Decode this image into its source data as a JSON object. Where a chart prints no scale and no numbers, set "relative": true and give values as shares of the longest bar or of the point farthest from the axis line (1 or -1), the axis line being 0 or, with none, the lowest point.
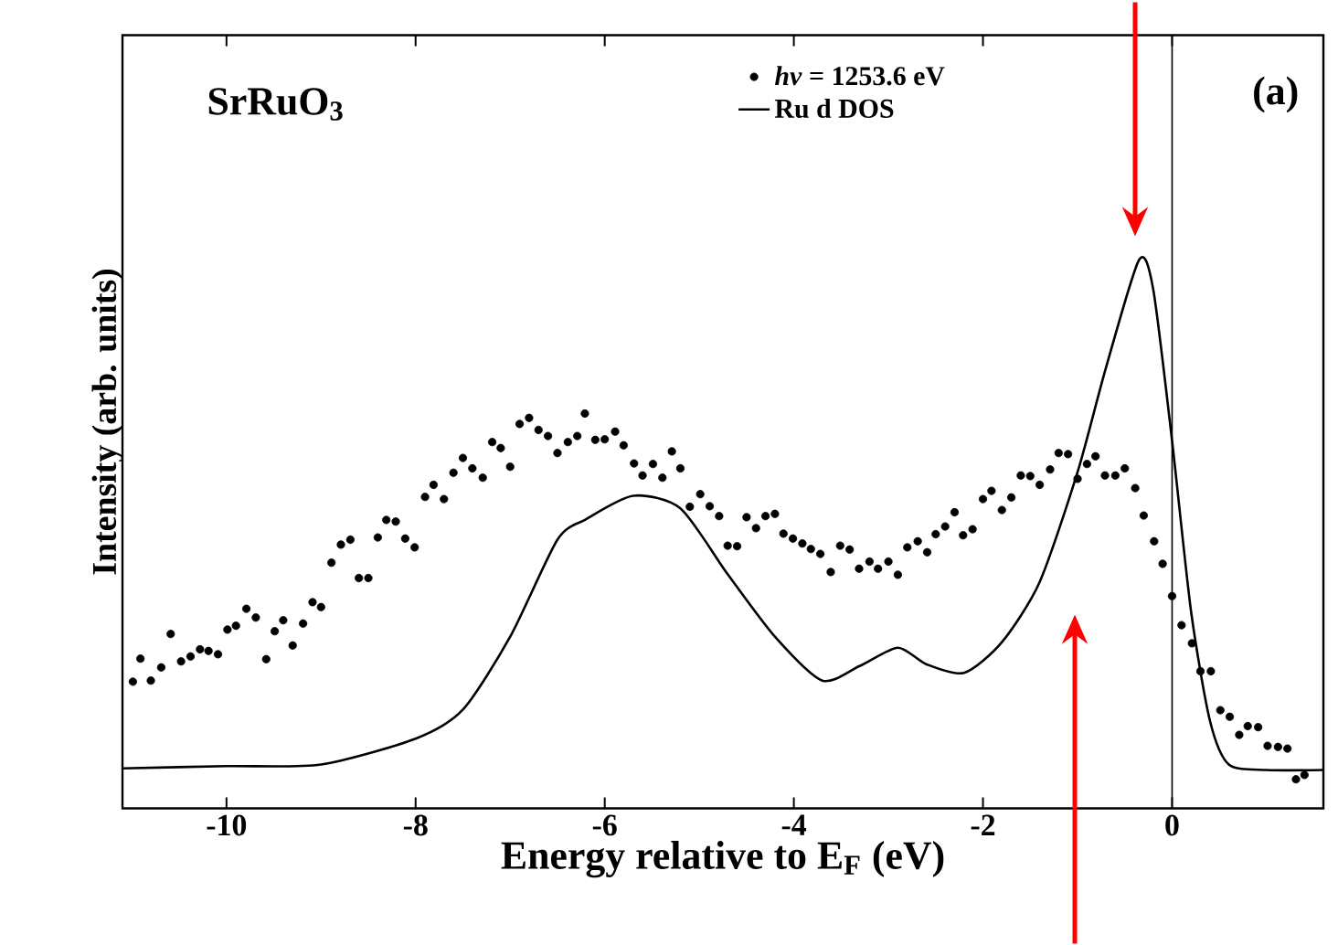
{
  "chart_data": {
    "type": "line",
    "title": "SrRuO$_{3}$",
    "xlabel": "Energy relative to E$_{F}$ (eV)",
    "ylabel": "Intensity (arb. units)",
    "annotations": [
      "(a)"
    ],
    "relative": true,
    "xlim": [
      -11.1,
      1.6
    ],
    "xticks": [
      -10,
      -8,
      -6,
      -4,
      -2,
      0
    ],
    "legend": "top right",
    "ref_lines": [
      {
        "axis": "x",
        "value": 0,
        "color": "#000000"
      }
    ],
    "series": [
      {
        "name": "*hν* = 1253.6 eV",
        "type": "scatter",
        "marker": "circle",
        "color": "#000000",
        "x": [
          -10.99,
          -10.91,
          -10.8,
          -10.69,
          -10.59,
          -10.48,
          -10.38,
          -10.28,
          -10.19,
          -10.09,
          -9.99,
          -9.9,
          -9.79,
          -9.69,
          -9.58,
          -9.49,
          -9.4,
          -9.3,
          -9.19,
          -9.09,
          -9.0,
          -8.89,
          -8.79,
          -8.69,
          -8.6,
          -8.5,
          -8.4,
          -8.31,
          -8.21,
          -8.11,
          -8.01,
          -7.9,
          -7.81,
          -7.7,
          -7.6,
          -7.5,
          -7.4,
          -7.29,
          -7.19,
          -7.1,
          -7.0,
          -6.9,
          -6.8,
          -6.7,
          -6.6,
          -6.5,
          -6.39,
          -6.29,
          -6.21,
          -6.1,
          -6.0,
          -5.89,
          -5.8,
          -5.69,
          -5.6,
          -5.49,
          -5.39,
          -5.29,
          -5.2,
          -5.1,
          -4.99,
          -4.89,
          -4.79,
          -4.7,
          -4.6,
          -4.5,
          -4.4,
          -4.3,
          -4.2,
          -4.11,
          -4.01,
          -3.91,
          -3.82,
          -3.72,
          -3.61,
          -3.51,
          -3.41,
          -3.31,
          -3.2,
          -3.11,
          -3.0,
          -2.9,
          -2.8,
          -2.69,
          -2.59,
          -2.5,
          -2.4,
          -2.3,
          -2.21,
          -2.11,
          -2.0,
          -1.91,
          -1.8,
          -1.7,
          -1.6,
          -1.5,
          -1.4,
          -1.29,
          -1.2,
          -1.1,
          -1.0,
          -0.9,
          -0.81,
          -0.71,
          -0.6,
          -0.5,
          -0.39,
          -0.3,
          -0.19,
          -0.1,
          0.0,
          0.1,
          0.21,
          0.3,
          0.41,
          0.51,
          0.61,
          0.71,
          0.8,
          0.91,
          1.01,
          1.12,
          1.22,
          1.31,
          1.4
        ],
        "values": [
          0.231,
          0.273,
          0.233,
          0.257,
          0.318,
          0.268,
          0.277,
          0.29,
          0.287,
          0.281,
          0.326,
          0.333,
          0.364,
          0.348,
          0.272,
          0.323,
          0.343,
          0.297,
          0.337,
          0.376,
          0.367,
          0.448,
          0.481,
          0.49,
          0.42,
          0.42,
          0.494,
          0.526,
          0.523,
          0.492,
          0.476,
          0.568,
          0.59,
          0.564,
          0.612,
          0.639,
          0.62,
          0.603,
          0.668,
          0.657,
          0.623,
          0.701,
          0.712,
          0.69,
          0.679,
          0.648,
          0.668,
          0.679,
          0.72,
          0.672,
          0.673,
          0.687,
          0.662,
          0.629,
          0.607,
          0.628,
          0.603,
          0.651,
          0.62,
          0.55,
          0.573,
          0.551,
          0.533,
          0.479,
          0.478,
          0.531,
          0.511,
          0.533,
          0.537,
          0.501,
          0.492,
          0.483,
          0.473,
          0.464,
          0.431,
          0.479,
          0.472,
          0.437,
          0.45,
          0.437,
          0.45,
          0.426,
          0.476,
          0.487,
          0.467,
          0.5,
          0.514,
          0.54,
          0.498,
          0.509,
          0.564,
          0.579,
          0.544,
          0.567,
          0.607,
          0.606,
          0.59,
          0.618,
          0.648,
          0.646,
          0.601,
          0.628,
          0.642,
          0.607,
          0.607,
          0.62,
          0.584,
          0.534,
          0.487,
          0.446,
          0.387,
          0.334,
          0.301,
          0.25,
          0.25,
          0.179,
          0.167,
          0.134,
          0.15,
          0.148,
          0.114,
          0.112,
          0.109,
          0.053,
          0.061
        ]
      },
      {
        "name": "Ru d DOS",
        "type": "line",
        "marker": "none",
        "color": "#000000",
        "x": [
          -11.1,
          -10,
          -9,
          -8,
          -7.5,
          -7,
          -6.5,
          -6.2,
          -5.7,
          -5.2,
          -4.7,
          -4.2,
          -3.7,
          -3.3,
          -2.9,
          -2.6,
          -2.2,
          -1.8,
          -1.4,
          -1.0,
          -0.7,
          -0.35,
          -0.2,
          0,
          0.2,
          0.4,
          0.6,
          1.0,
          1.6
        ],
        "values": [
          0.073,
          0.077,
          0.08,
          0.127,
          0.18,
          0.313,
          0.49,
          0.527,
          0.57,
          0.547,
          0.427,
          0.313,
          0.233,
          0.26,
          0.293,
          0.263,
          0.247,
          0.303,
          0.413,
          0.613,
          0.803,
          1,
          0.947,
          0.67,
          0.36,
          0.16,
          0.08,
          0.07,
          0.07
        ]
      }
    ]
  }
}
